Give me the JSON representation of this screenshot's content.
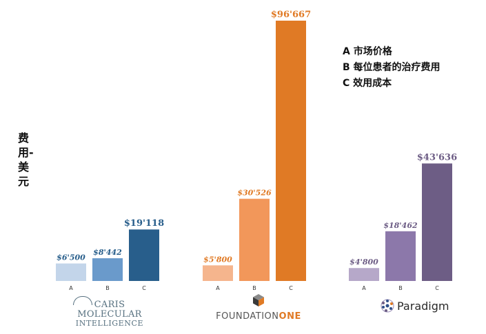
{
  "ylabel": "费用-美元",
  "legend": [
    {
      "key": "A",
      "text": "市场价格"
    },
    {
      "key": "B",
      "text": "每位患者的治疗费用"
    },
    {
      "key": "C",
      "text": "效用成本"
    }
  ],
  "logos": {
    "caris": {
      "line1": "CARIS MOLECULAR",
      "line2": "INTELLIGENCE"
    },
    "foundation": {
      "part1": "FOUNDATION",
      "part2": "ONE"
    },
    "paradigm": {
      "text": "Paradigm"
    }
  },
  "chart_data": {
    "type": "bar",
    "categories": [
      "A",
      "B",
      "C"
    ],
    "ylabel": "费用-美元",
    "groups": [
      {
        "name": "CARIS MOLECULAR INTELLIGENCE",
        "values": [
          6500,
          8442,
          19118
        ],
        "labels": [
          "$6'500",
          "$8'442",
          "$19'118"
        ],
        "colors": [
          "#c3d5ea",
          "#6a9acb",
          "#285e8b"
        ]
      },
      {
        "name": "FOUNDATIONONE",
        "values": [
          5800,
          30526,
          96667
        ],
        "labels": [
          "$5'800",
          "$30'526",
          "$96'667"
        ],
        "colors": [
          "#f5b58d",
          "#f2975a",
          "#e07a25"
        ]
      },
      {
        "name": "Paradigm",
        "values": [
          4800,
          18462,
          43636
        ],
        "labels": [
          "$4'800",
          "$18'462",
          "$43'636"
        ],
        "colors": [
          "#b6a8c9",
          "#8c78aa",
          "#6d5d85"
        ]
      }
    ],
    "label_colors": [
      "#285e8b",
      "#e07a25",
      "#6d5d85"
    ],
    "ylim": [
      0,
      100000
    ]
  }
}
